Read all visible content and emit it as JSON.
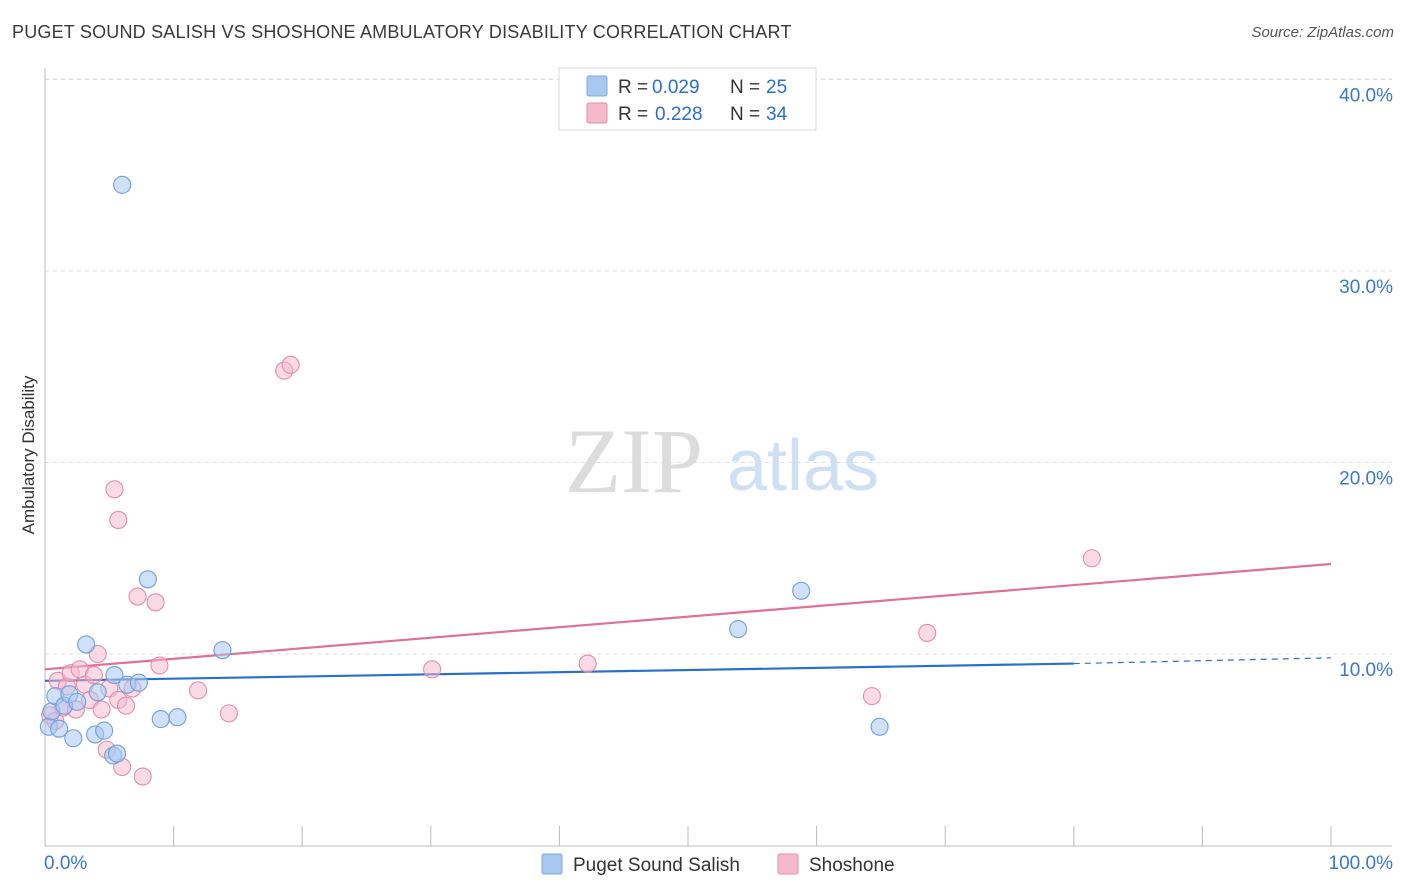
{
  "header": {
    "title": "PUGET SOUND SALISH VS SHOSHONE AMBULATORY DISABILITY CORRELATION CHART",
    "source": "Source: ZipAtlas.com"
  },
  "watermark": {
    "zip": "ZIP",
    "atlas": "atlas"
  },
  "legend_box": {
    "rows": [
      {
        "r_label": "R = ",
        "r_value": "0.029",
        "n_label": "N = ",
        "n_value": "25"
      },
      {
        "r_label": "R = ",
        "r_value": "0.228",
        "n_label": "N = ",
        "n_value": "34"
      }
    ]
  },
  "colors": {
    "blue_fill": "#a9c8f0",
    "blue_line": "#2a6fcf",
    "pink_fill": "#f6b8cb",
    "pink_line": "#e0709a",
    "axis_text": "#3a78c9"
  },
  "chart_data": {
    "type": "scatter",
    "title": "PUGET SOUND SALISH VS SHOSHONE AMBULATORY DISABILITY CORRELATION CHART",
    "xlabel": "",
    "ylabel": "Ambulatory Disability",
    "xlim": [
      0,
      100
    ],
    "ylim": [
      0,
      41
    ],
    "x_tick_labels": [
      "0.0%",
      "100.0%"
    ],
    "y_ticks": [
      10,
      20,
      30,
      40
    ],
    "y_tick_labels": [
      "10.0%",
      "20.0%",
      "30.0%",
      "40.0%"
    ],
    "grid": true,
    "legend_position": "bottom-center",
    "series": [
      {
        "name": "Puget Sound Salish",
        "color": "#a9c8f0",
        "r": 0.029,
        "n": 25,
        "points": [
          [
            0.3,
            6.2
          ],
          [
            0.5,
            7.0
          ],
          [
            0.8,
            7.8
          ],
          [
            1.1,
            6.1
          ],
          [
            1.5,
            7.3
          ],
          [
            1.9,
            7.9
          ],
          [
            2.2,
            5.6
          ],
          [
            2.5,
            7.5
          ],
          [
            3.2,
            10.5
          ],
          [
            3.9,
            5.8
          ],
          [
            4.1,
            8.0
          ],
          [
            4.6,
            6.0
          ],
          [
            5.3,
            4.7
          ],
          [
            5.4,
            8.9
          ],
          [
            5.6,
            4.8
          ],
          [
            6.0,
            34.5
          ],
          [
            6.4,
            8.4
          ],
          [
            7.3,
            8.5
          ],
          [
            8.0,
            13.9
          ],
          [
            9.0,
            6.6
          ],
          [
            10.3,
            6.7
          ],
          [
            13.8,
            10.2
          ],
          [
            53.9,
            11.3
          ],
          [
            58.8,
            13.3
          ],
          [
            64.9,
            6.2
          ]
        ],
        "trend": {
          "x": [
            0,
            80
          ],
          "y": [
            8.6,
            9.5
          ]
        },
        "trend_dashed": {
          "x": [
            80,
            100
          ],
          "y": [
            9.5,
            9.8
          ]
        }
      },
      {
        "name": "Shoshone",
        "color": "#f6b8cb",
        "r": 0.228,
        "n": 34,
        "points": [
          [
            0.4,
            6.8
          ],
          [
            0.8,
            6.5
          ],
          [
            1.0,
            8.6
          ],
          [
            1.4,
            7.2
          ],
          [
            1.7,
            8.3
          ],
          [
            2.0,
            9.0
          ],
          [
            2.4,
            7.1
          ],
          [
            2.7,
            9.2
          ],
          [
            3.1,
            8.4
          ],
          [
            3.5,
            7.6
          ],
          [
            3.8,
            8.9
          ],
          [
            4.1,
            10.0
          ],
          [
            4.4,
            7.1
          ],
          [
            4.8,
            5.0
          ],
          [
            5.0,
            8.2
          ],
          [
            5.4,
            18.6
          ],
          [
            5.7,
            7.6
          ],
          [
            5.7,
            17.0
          ],
          [
            6.0,
            4.1
          ],
          [
            6.3,
            7.3
          ],
          [
            6.8,
            8.2
          ],
          [
            7.2,
            13.0
          ],
          [
            7.6,
            3.6
          ],
          [
            8.6,
            12.7
          ],
          [
            8.9,
            9.4
          ],
          [
            11.9,
            8.1
          ],
          [
            14.3,
            6.9
          ],
          [
            18.6,
            24.8
          ],
          [
            19.1,
            25.1
          ],
          [
            30.1,
            9.2
          ],
          [
            42.2,
            9.5
          ],
          [
            64.3,
            7.8
          ],
          [
            68.6,
            11.1
          ],
          [
            81.4,
            15.0
          ]
        ],
        "trend": {
          "x": [
            0,
            100
          ],
          "y": [
            9.2,
            14.7
          ]
        }
      }
    ]
  }
}
